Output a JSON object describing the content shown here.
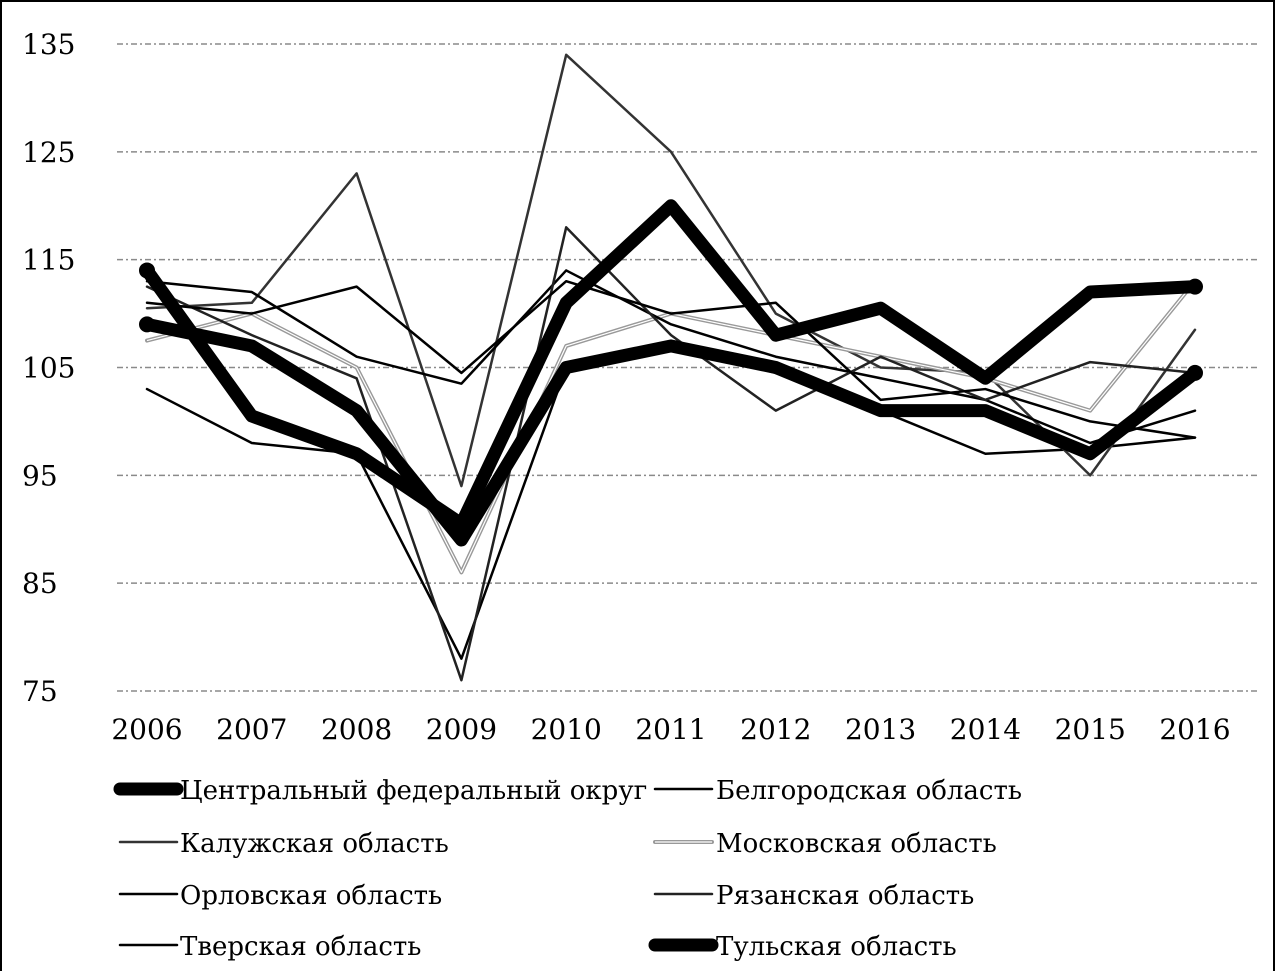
{
  "chart_data": {
    "type": "line",
    "title": "",
    "xlabel": "",
    "ylabel": "",
    "categories": [
      "2006",
      "2007",
      "2008",
      "2009",
      "2010",
      "2011",
      "2012",
      "2013",
      "2014",
      "2015",
      "2016"
    ],
    "ylim": [
      75,
      135
    ],
    "yticks": [
      75,
      85,
      95,
      105,
      115,
      125,
      135
    ],
    "grid": "horizontal dotted",
    "legend_position": "bottom",
    "series": [
      {
        "name": "Центральный федеральный округ",
        "values": [
          109,
          107,
          101,
          89,
          105,
          107,
          105,
          101,
          101,
          97,
          104.5
        ],
        "color": "#000000",
        "style": "bold"
      },
      {
        "name": "Белгородская область",
        "values": [
          103,
          98,
          97,
          78,
          105,
          107,
          104.5,
          101,
          97,
          97.5,
          98.5
        ],
        "color": "#000000",
        "style": "thin"
      },
      {
        "name": "Калужская область",
        "values": [
          110.5,
          111,
          123,
          94,
          134,
          125,
          110,
          105,
          104.5,
          95,
          108.5
        ],
        "color": "#333333",
        "style": "thin"
      },
      {
        "name": "Московская область",
        "values": [
          107.5,
          110,
          105,
          86,
          107,
          110,
          108,
          106,
          104,
          101,
          113
        ],
        "color": "#999999",
        "style": "double"
      },
      {
        "name": "Орловская область",
        "values": [
          113,
          112,
          106,
          103.5,
          114,
          109,
          106,
          104,
          102,
          98,
          101
        ],
        "color": "#000000",
        "style": "thin"
      },
      {
        "name": "Рязанская область",
        "values": [
          112.5,
          108,
          104,
          76,
          118,
          108,
          101,
          106,
          102,
          105.5,
          104.5
        ],
        "color": "#222222",
        "style": "thin"
      },
      {
        "name": "Тверская область",
        "values": [
          111,
          110,
          112.5,
          104.5,
          113,
          110,
          111,
          102,
          103,
          100,
          98.5
        ],
        "color": "#000000",
        "style": "thin"
      },
      {
        "name": "Тульская область",
        "values": [
          114,
          100.5,
          97,
          90.5,
          111,
          120,
          108,
          110.5,
          104,
          112,
          112.5
        ],
        "color": "#000000",
        "style": "bold"
      }
    ]
  }
}
